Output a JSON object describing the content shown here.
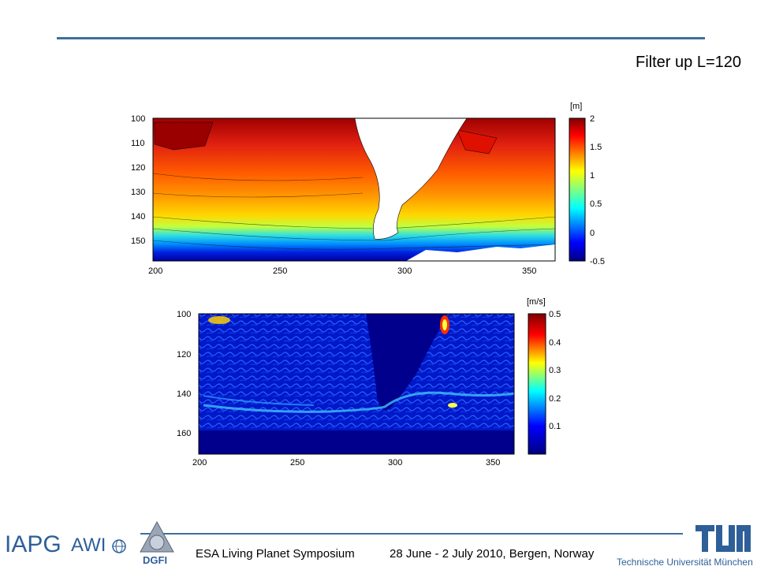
{
  "slide_title": "Filter up L=120",
  "plot_top": {
    "colorbar_unit": "[m]",
    "y_ticks": [
      "100",
      "110",
      "120",
      "130",
      "140",
      "150"
    ],
    "x_ticks": [
      "200",
      "250",
      "300",
      "350"
    ],
    "colorbar_ticks": [
      "2",
      "1.5",
      "1",
      "0.5",
      "0",
      "-0.5"
    ],
    "colormap": [
      "#000080",
      "#0000ff",
      "#0080ff",
      "#00ffff",
      "#80ff80",
      "#ffff00",
      "#ff8000",
      "#ff0000",
      "#800000"
    ]
  },
  "plot_bottom": {
    "colorbar_unit": "[m/s]",
    "y_ticks": [
      "100",
      "120",
      "140",
      "160"
    ],
    "x_ticks": [
      "200",
      "250",
      "300",
      "350"
    ],
    "colorbar_ticks": [
      "0.5",
      "0.4",
      "0.3",
      "0.2",
      "0.1"
    ]
  },
  "footer": {
    "event": "ESA Living Planet Symposium",
    "dates": "28 June - 2 July 2010, Bergen, Norway"
  },
  "logos": {
    "iapg": "IAPG",
    "awi": "AWI",
    "dgfi": "DGFI",
    "tum_sub": "Technische Universität München"
  }
}
